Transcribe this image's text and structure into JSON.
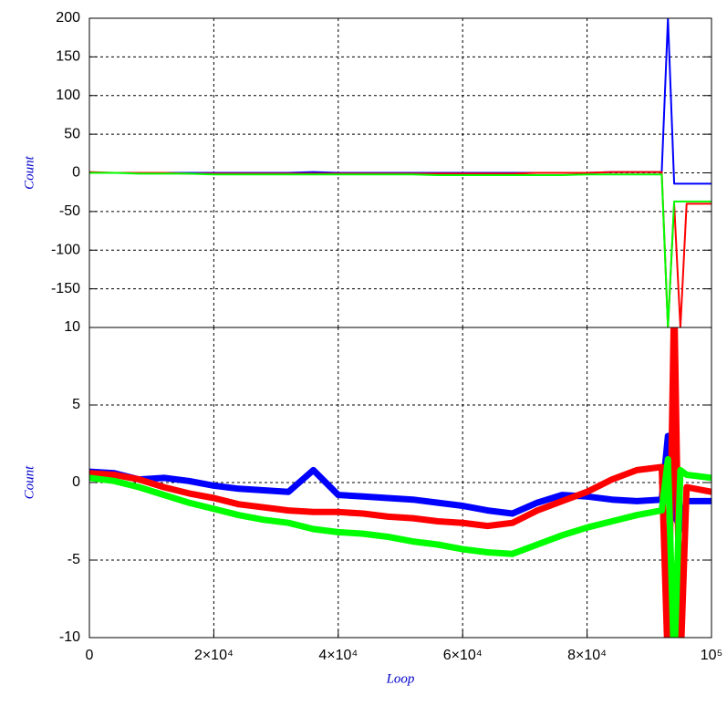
{
  "chart_data": [
    {
      "type": "line",
      "y_label": "Count",
      "grid": true,
      "ylim": [
        -200,
        200
      ],
      "yticks": [
        200,
        150,
        100,
        50,
        0,
        -50,
        -100,
        -150
      ],
      "x": [
        0,
        4000,
        8000,
        12000,
        16000,
        20000,
        24000,
        28000,
        32000,
        36000,
        40000,
        44000,
        48000,
        52000,
        56000,
        60000,
        64000,
        68000,
        72000,
        76000,
        80000,
        84000,
        88000,
        92000,
        93000,
        94000,
        95000,
        96000,
        100000
      ],
      "series": [
        {
          "name": "blue",
          "color": "#0000ff",
          "values": [
            0,
            0,
            0,
            0,
            0,
            0,
            0,
            0,
            0,
            1,
            0,
            0,
            0,
            0,
            0,
            0,
            0,
            0,
            0,
            0,
            0,
            1,
            1,
            1,
            200,
            -14,
            -14,
            -14,
            -14
          ]
        },
        {
          "name": "red",
          "color": "#ff0000",
          "values": [
            1,
            0,
            0,
            0,
            -1,
            -1,
            -1,
            -1,
            -1,
            -1,
            -1,
            -1,
            -1,
            -1,
            -1,
            -1,
            -1,
            -1,
            0,
            0,
            0,
            1,
            1,
            1,
            -200,
            -40,
            -200,
            -40,
            -40
          ]
        },
        {
          "name": "green",
          "color": "#00ff00",
          "values": [
            0,
            0,
            -1,
            -1,
            -1,
            -2,
            -2,
            -2,
            -2,
            -2,
            -2,
            -2,
            -2,
            -2,
            -3,
            -3,
            -3,
            -3,
            -3,
            -3,
            -2,
            -2,
            -2,
            -2,
            -200,
            -37,
            -37,
            -37,
            -37
          ]
        }
      ]
    },
    {
      "type": "line",
      "y_label": "Count",
      "x_label": "Loop",
      "grid": true,
      "xlim": [
        0,
        100000
      ],
      "xticks": [
        {
          "value": 0,
          "label": "0"
        },
        {
          "value": 20000,
          "label": "2×10⁴"
        },
        {
          "value": 40000,
          "label": "4×10⁴"
        },
        {
          "value": 60000,
          "label": "6×10⁴"
        },
        {
          "value": 80000,
          "label": "8×10⁴"
        },
        {
          "value": 100000,
          "label": "10⁵"
        }
      ],
      "ylim": [
        -10,
        10
      ],
      "yticks": [
        10,
        5,
        0,
        -5,
        -10
      ],
      "x": [
        0,
        4000,
        8000,
        12000,
        16000,
        20000,
        24000,
        28000,
        32000,
        36000,
        40000,
        44000,
        48000,
        52000,
        56000,
        60000,
        64000,
        68000,
        72000,
        76000,
        80000,
        84000,
        88000,
        92000,
        93000,
        94000,
        95000,
        96000,
        100000
      ],
      "series": [
        {
          "name": "blue",
          "color": "#0000ff",
          "values": [
            0.7,
            0.6,
            0.2,
            0.3,
            0.1,
            -0.2,
            -0.4,
            -0.5,
            -0.6,
            0.8,
            -0.8,
            -0.9,
            -1.0,
            -1.1,
            -1.3,
            -1.5,
            -1.8,
            -2.0,
            -1.3,
            -0.8,
            -0.9,
            -1.1,
            -1.2,
            -1.1,
            3,
            -2,
            -3,
            -1.2,
            -1.2
          ]
        },
        {
          "name": "red",
          "color": "#ff0000",
          "values": [
            0.6,
            0.5,
            0.2,
            -0.3,
            -0.7,
            -1.0,
            -1.4,
            -1.6,
            -1.8,
            -1.9,
            -1.9,
            -2.0,
            -2.2,
            -2.3,
            -2.5,
            -2.6,
            -2.8,
            -2.6,
            -1.8,
            -1.2,
            -0.6,
            0.2,
            0.8,
            1.0,
            -12,
            12,
            -12,
            -0.3,
            -0.6
          ]
        },
        {
          "name": "green",
          "color": "#00ff00",
          "values": [
            0.3,
            0.1,
            -0.3,
            -0.8,
            -1.3,
            -1.7,
            -2.1,
            -2.4,
            -2.6,
            -3.0,
            -3.2,
            -3.3,
            -3.5,
            -3.8,
            -4.0,
            -4.3,
            -4.5,
            -4.6,
            -4.0,
            -3.4,
            -2.9,
            -2.5,
            -2.1,
            -1.8,
            1.5,
            -12,
            0.8,
            0.5,
            0.3
          ]
        }
      ]
    }
  ]
}
